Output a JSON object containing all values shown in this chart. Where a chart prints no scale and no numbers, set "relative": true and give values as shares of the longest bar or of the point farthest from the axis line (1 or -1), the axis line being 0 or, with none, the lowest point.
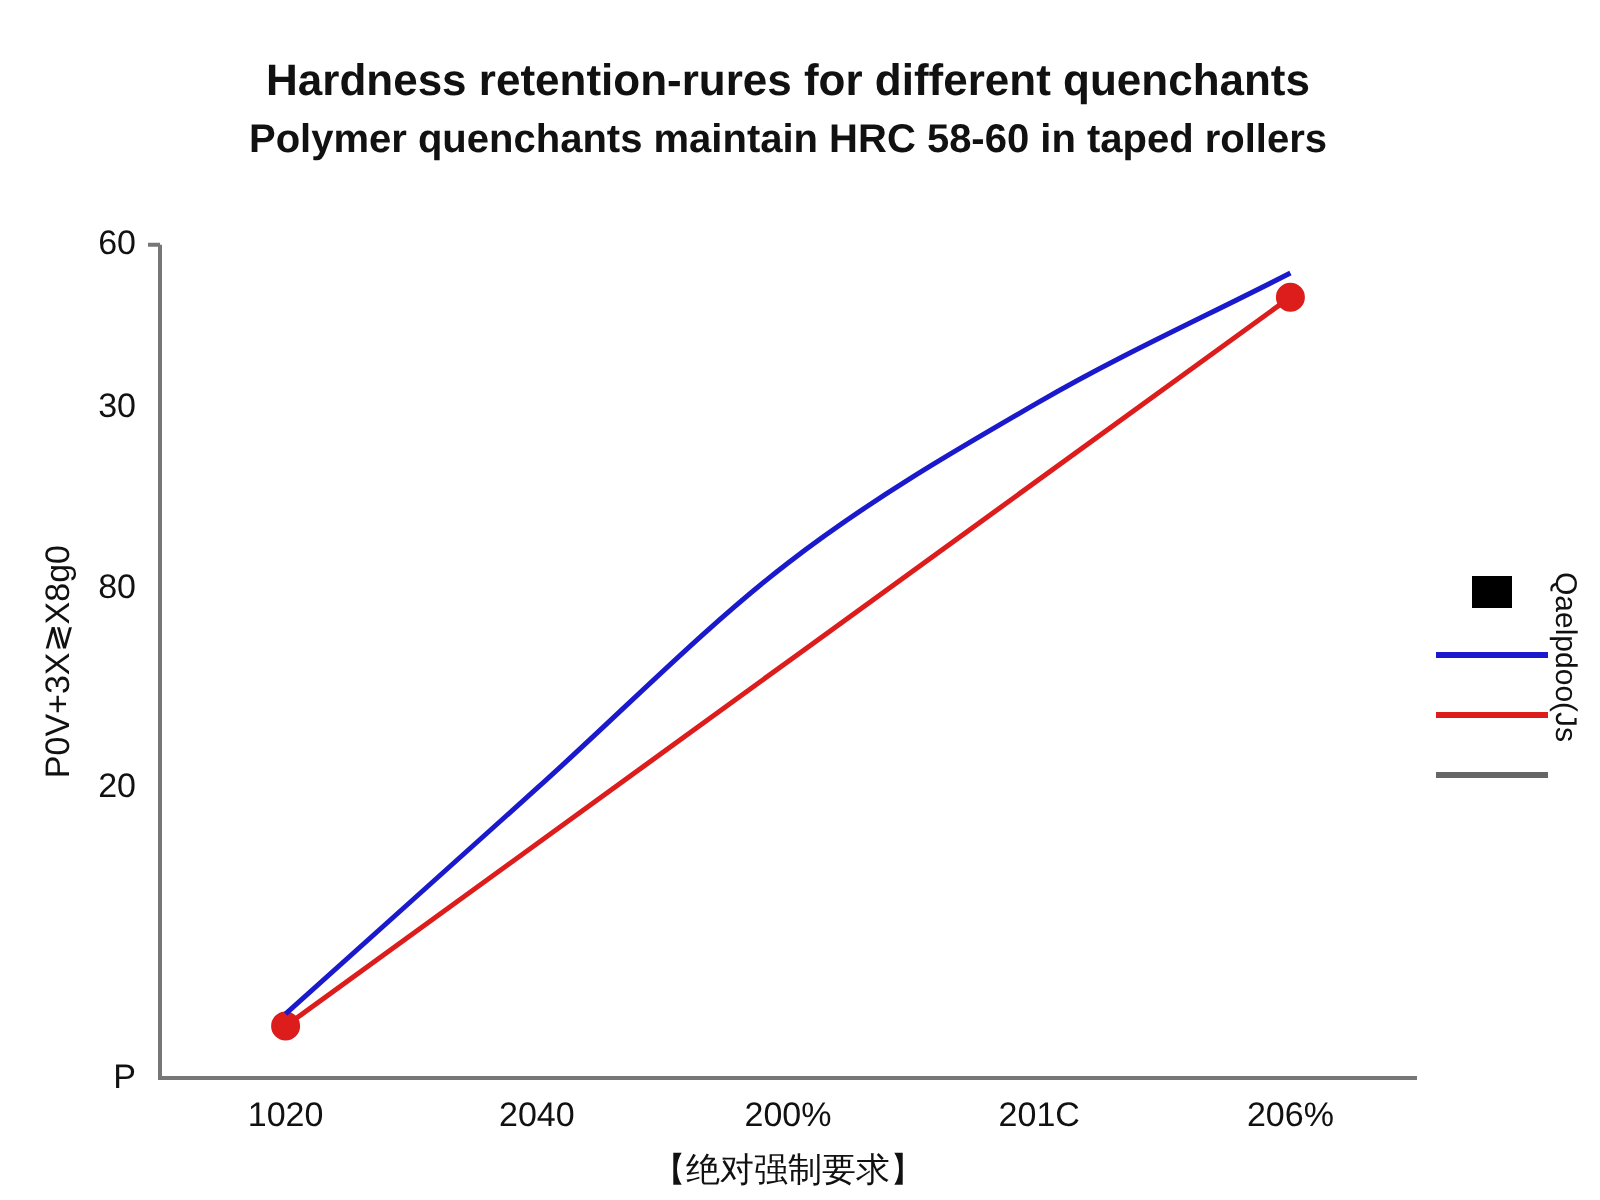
{
  "chart_data": {
    "type": "line",
    "title": "Hardness retention-rures for different quenchants",
    "subtitle": "Polymer quenchants maintain HRC 58-60 in taped rollers",
    "xlabel": "【绝对强制要求】",
    "ylabel": "P0V+3X≷X8g0",
    "legend_title": "Qaelpdoo(Js",
    "relative": true,
    "categories": [
      "1020",
      "2040",
      "200%",
      "201C",
      "206%"
    ],
    "annotations": [
      "60",
      "30",
      "80",
      "20",
      "P"
    ],
    "series": [
      {
        "color": "#1a1acc",
        "marker": "none",
        "values": [
          0.08,
          0.36,
          0.64,
          0.84,
          1
        ]
      },
      {
        "color": "#dd1c1c",
        "marker": "circle",
        "values": [
          0.065,
          null,
          null,
          null,
          0.97
        ]
      }
    ]
  }
}
